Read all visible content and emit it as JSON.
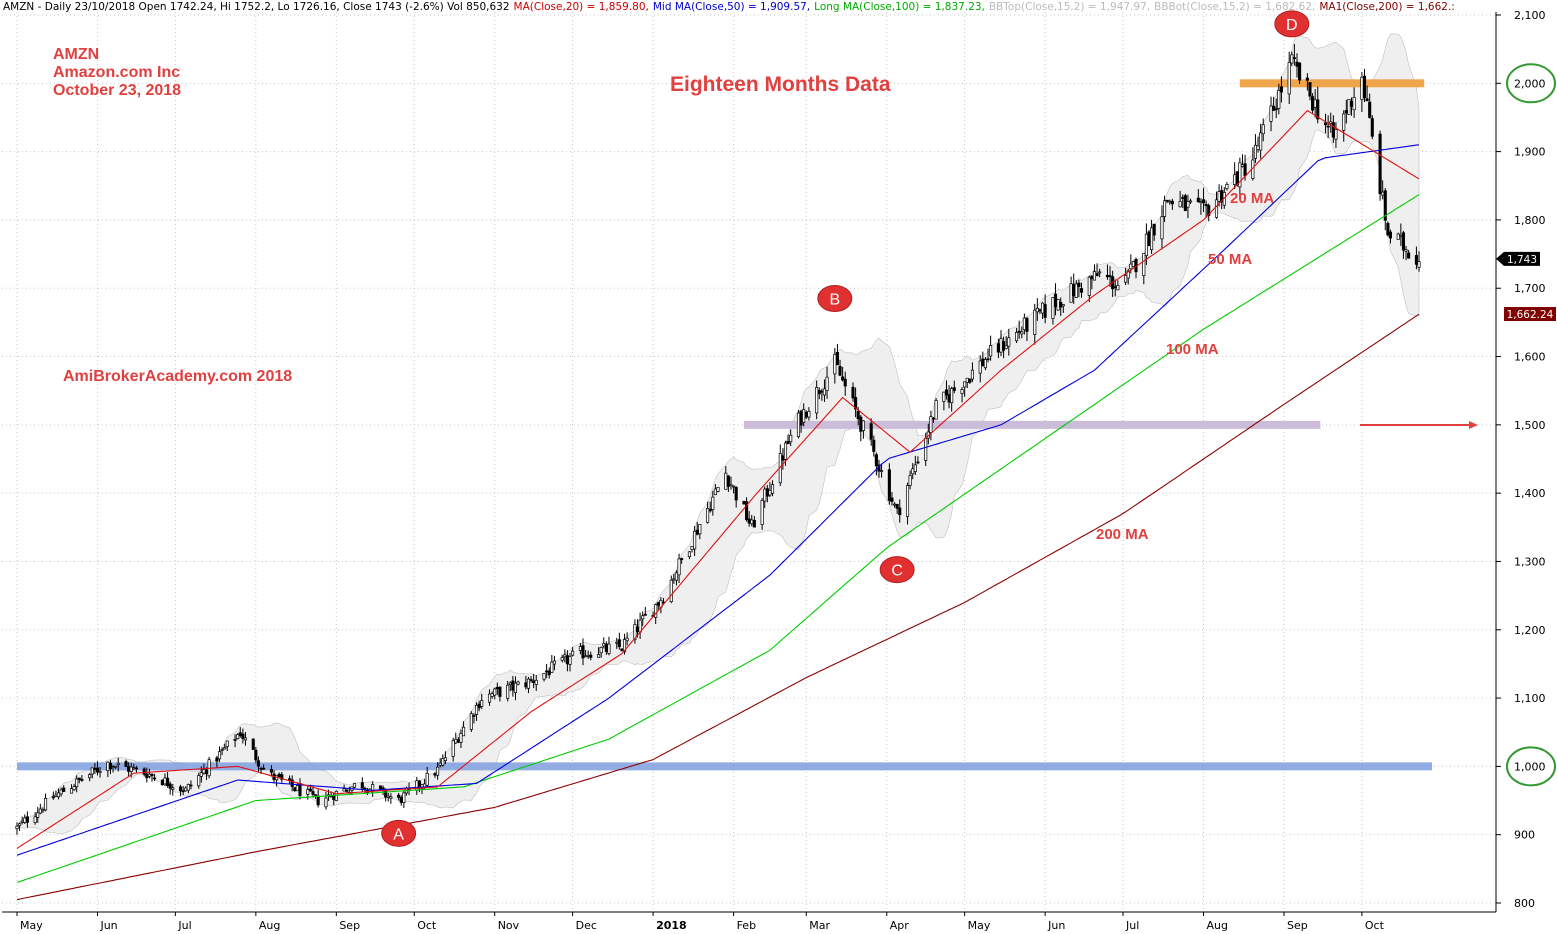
{
  "header": {
    "summary": "AMZN - Daily 23/10/2018 Open 1742.24, Hi 1752.2, Lo 1726.16, Close 1743 (-2.6%) Vol 850,632",
    "ma20": "MA(Close,20) = 1,859.80,",
    "ma50": "Mid MA(Close,50) = 1,909.57,",
    "ma100": "Long MA(Close,100) = 1,837.23,",
    "bbtop": "BBTop(Close,15,2) = 1,947.97,",
    "bbbot": "BBBot(Close,15,2) = 1,682.62,",
    "ma200": "MA1(Close,200) = 1,662.:"
  },
  "annotations": {
    "ticker": "AMZN",
    "company": "Amazon.com Inc",
    "date": "October 23, 2018",
    "title": "Eighteen Months Data",
    "site": "AmiBrokerAcademy.com  2018",
    "ma20_label": "20 MA",
    "ma50_label": "50 MA",
    "ma100_label": "100 MA",
    "ma200_label": "200 MA"
  },
  "colors": {
    "ma20": "#dd1111",
    "ma50": "#0000dd",
    "ma100": "#00cc00",
    "ma200": "#8b0000",
    "band_fill": "#efefef",
    "annotation_red": "#e04040",
    "marker_red": "#e03030",
    "resistance_orange": "#f0a040",
    "support_blue": "#7f9fdf",
    "mid_purple": "#c8b8d8",
    "circle_green": "#339933"
  },
  "chart_data": {
    "type": "candlestick",
    "title": "",
    "ylim": [
      790,
      2105
    ],
    "y_ticks": [
      "800",
      "900",
      "1,000",
      "1,100",
      "1,200",
      "1,300",
      "1,400",
      "1,500",
      "1,600",
      "1,700",
      "1,800",
      "1,900",
      "2,000",
      "2,100"
    ],
    "x_labels": [
      "May",
      "Jun",
      "Jul",
      "Aug",
      "Sep",
      "Oct",
      "Nov",
      "Dec",
      "2018",
      "Feb",
      "Mar",
      "Apr",
      "May",
      "Jun",
      "Jul",
      "Aug",
      "Sep",
      "Oct"
    ],
    "price_path": [
      {
        "date": "2017-05-01",
        "close": 910
      },
      {
        "date": "2017-05-15",
        "close": 955
      },
      {
        "date": "2017-06-05",
        "close": 1005
      },
      {
        "date": "2017-06-20",
        "close": 990
      },
      {
        "date": "2017-07-05",
        "close": 965
      },
      {
        "date": "2017-07-26",
        "close": 1050
      },
      {
        "date": "2017-08-05",
        "close": 990
      },
      {
        "date": "2017-08-25",
        "close": 950
      },
      {
        "date": "2017-09-10",
        "close": 975
      },
      {
        "date": "2017-09-25",
        "close": 950
      },
      {
        "date": "2017-10-10",
        "close": 995
      },
      {
        "date": "2017-10-27",
        "close": 1100
      },
      {
        "date": "2017-11-15",
        "close": 1125
      },
      {
        "date": "2017-12-03",
        "close": 1165
      },
      {
        "date": "2017-12-20",
        "close": 1175
      },
      {
        "date": "2018-01-05",
        "close": 1250
      },
      {
        "date": "2018-01-29",
        "close": 1430
      },
      {
        "date": "2018-02-08",
        "close": 1350
      },
      {
        "date": "2018-02-25",
        "close": 1500
      },
      {
        "date": "2018-03-12",
        "close": 1590
      },
      {
        "date": "2018-03-28",
        "close": 1450
      },
      {
        "date": "2018-04-05",
        "close": 1370
      },
      {
        "date": "2018-04-20",
        "close": 1525
      },
      {
        "date": "2018-05-10",
        "close": 1600
      },
      {
        "date": "2018-06-05",
        "close": 1680
      },
      {
        "date": "2018-06-22",
        "close": 1720
      },
      {
        "date": "2018-07-01",
        "close": 1700
      },
      {
        "date": "2018-07-18",
        "close": 1830
      },
      {
        "date": "2018-08-01",
        "close": 1810
      },
      {
        "date": "2018-08-20",
        "close": 1890
      },
      {
        "date": "2018-09-04",
        "close": 2030
      },
      {
        "date": "2018-09-20",
        "close": 1920
      },
      {
        "date": "2018-10-01",
        "close": 2010
      },
      {
        "date": "2018-10-11",
        "close": 1780
      },
      {
        "date": "2018-10-23",
        "close": 1743
      }
    ],
    "ma20": [
      {
        "date": "2017-05-01",
        "value": 880
      },
      {
        "date": "2017-06-15",
        "value": 990
      },
      {
        "date": "2017-07-25",
        "value": 1000
      },
      {
        "date": "2017-09-01",
        "value": 960
      },
      {
        "date": "2017-10-10",
        "value": 970
      },
      {
        "date": "2017-11-15",
        "value": 1080
      },
      {
        "date": "2017-12-20",
        "value": 1165
      },
      {
        "date": "2018-02-10",
        "value": 1400
      },
      {
        "date": "2018-03-15",
        "value": 1540
      },
      {
        "date": "2018-04-10",
        "value": 1460
      },
      {
        "date": "2018-05-15",
        "value": 1580
      },
      {
        "date": "2018-06-20",
        "value": 1690
      },
      {
        "date": "2018-08-01",
        "value": 1800
      },
      {
        "date": "2018-09-10",
        "value": 1960
      },
      {
        "date": "2018-10-23",
        "value": 1860
      }
    ],
    "ma50": [
      {
        "date": "2017-05-01",
        "value": 870
      },
      {
        "date": "2017-07-25",
        "value": 980
      },
      {
        "date": "2017-09-15",
        "value": 965
      },
      {
        "date": "2017-10-25",
        "value": 975
      },
      {
        "date": "2017-12-15",
        "value": 1100
      },
      {
        "date": "2018-02-15",
        "value": 1280
      },
      {
        "date": "2018-04-01",
        "value": 1450
      },
      {
        "date": "2018-05-15",
        "value": 1500
      },
      {
        "date": "2018-06-20",
        "value": 1580
      },
      {
        "date": "2018-08-10",
        "value": 1760
      },
      {
        "date": "2018-09-15",
        "value": 1890
      },
      {
        "date": "2018-10-23",
        "value": 1910
      }
    ],
    "ma100": [
      {
        "date": "2017-05-01",
        "value": 830
      },
      {
        "date": "2017-08-01",
        "value": 950
      },
      {
        "date": "2017-10-20",
        "value": 970
      },
      {
        "date": "2017-12-15",
        "value": 1040
      },
      {
        "date": "2018-02-15",
        "value": 1170
      },
      {
        "date": "2018-04-01",
        "value": 1320
      },
      {
        "date": "2018-06-01",
        "value": 1480
      },
      {
        "date": "2018-08-01",
        "value": 1640
      },
      {
        "date": "2018-10-23",
        "value": 1837
      }
    ],
    "ma200": [
      {
        "date": "2017-05-01",
        "value": 805
      },
      {
        "date": "2017-08-01",
        "value": 875
      },
      {
        "date": "2017-11-01",
        "value": 940
      },
      {
        "date": "2018-01-01",
        "value": 1010
      },
      {
        "date": "2018-03-01",
        "value": 1130
      },
      {
        "date": "2018-05-01",
        "value": 1240
      },
      {
        "date": "2018-07-01",
        "value": 1370
      },
      {
        "date": "2018-09-01",
        "value": 1530
      },
      {
        "date": "2018-10-23",
        "value": 1662
      }
    ],
    "reference_levels": [
      {
        "name": "resistance",
        "value": 2000,
        "from": "2018-08-15",
        "to": "2018-10-25"
      },
      {
        "name": "mid-range",
        "value": 1500,
        "from": "2018-02-05",
        "to": "2018-09-15"
      },
      {
        "name": "support",
        "value": 1000,
        "from": "2017-05-01",
        "to": "2018-10-28"
      }
    ],
    "point_labels": [
      {
        "label": "A",
        "date": "2017-09-25",
        "value": 902
      },
      {
        "label": "B",
        "date": "2018-03-12",
        "value": 1685
      },
      {
        "label": "C",
        "date": "2018-04-05",
        "value": 1288
      },
      {
        "label": "D",
        "date": "2018-09-04",
        "value": 2087
      }
    ],
    "price_boxes": [
      {
        "text": "1,743",
        "value": 1743,
        "fill": "#000000",
        "color": "#ffffff"
      },
      {
        "text": "1,662.24",
        "value": 1662.24,
        "fill": "#800000",
        "color": "#ffffff"
      }
    ],
    "circled_levels": [
      "2,000",
      "1,000"
    ]
  }
}
